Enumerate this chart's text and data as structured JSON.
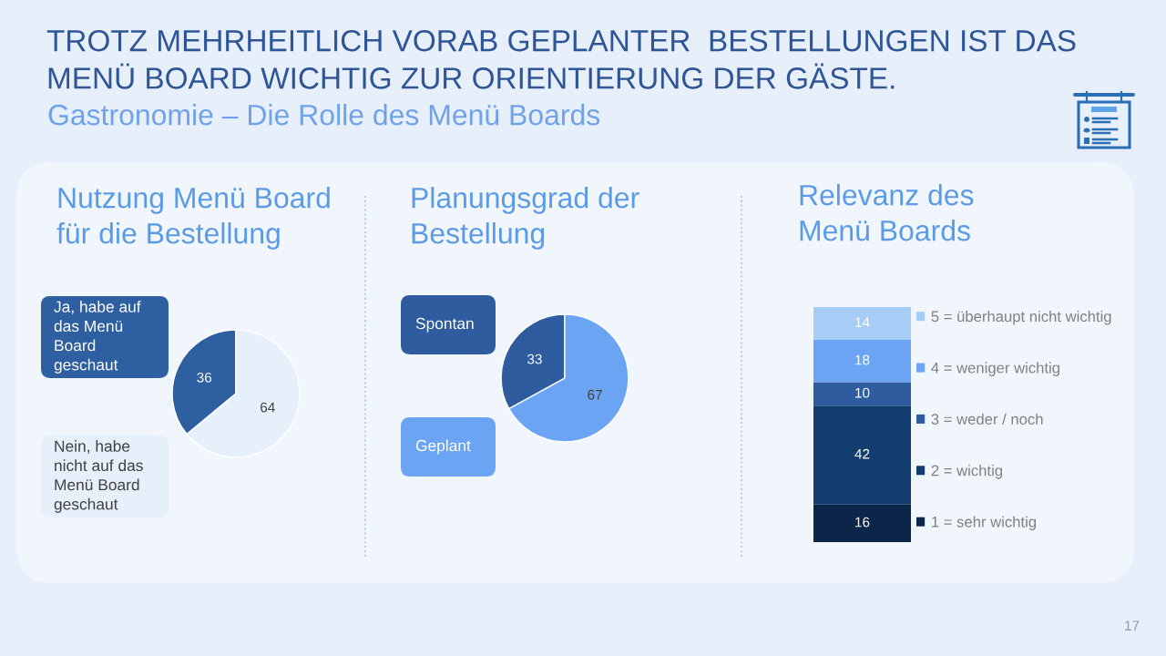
{
  "chart_data": [
    {
      "type": "other",
      "title": "TROTZ MEHRHEITLICH VORAB GEPLANTER  BESTELLUNGEN IST DAS\nMENÜ BOARD WICHTIG ZUR ORIENTIERUNG DER GÄSTE.",
      "subtitle": "Gastronomie – Die Rolle des Menü Boards",
      "annotations": [
        "17"
      ]
    },
    {
      "type": "pie",
      "title": "Nutzung Menü Board\nfür die Bestellung",
      "categories": [
        "Ja, habe auf\ndas Menü\nBoard\ngeschaut",
        "Nein, habe\nnicht auf das\nMenü Board\ngeschaut"
      ],
      "values": [
        36,
        64
      ],
      "colors": [
        "#2e5fa0",
        "#e6f0fb"
      ],
      "data_labels": true
    },
    {
      "type": "pie",
      "title": "Planungsgrad der\nBestellung",
      "categories": [
        "Spontan",
        "Geplant"
      ],
      "values": [
        33,
        67
      ],
      "colors": [
        "#2e5c9e",
        "#6aa4f2"
      ],
      "data_labels": true
    },
    {
      "type": "bar",
      "title": "Relevanz des\nMenü Boards",
      "categories": [
        null
      ],
      "stacked": true,
      "series": [
        {
          "name": "1 = sehr wichtig",
          "color": "#0b2648",
          "values": [
            16
          ]
        },
        {
          "name": "2 = wichtig",
          "color": "#123d6e",
          "values": [
            42
          ]
        },
        {
          "name": "3 = weder / noch",
          "color": "#2e5c9e",
          "values": [
            10
          ]
        },
        {
          "name": "4 = weniger wichtig",
          "color": "#6aa4f2",
          "values": [
            18
          ]
        },
        {
          "name": "5 = überhaupt nicht wichtig",
          "color": "#a6cdf5",
          "values": [
            14
          ]
        }
      ],
      "data_labels": true,
      "legend": "right"
    }
  ]
}
